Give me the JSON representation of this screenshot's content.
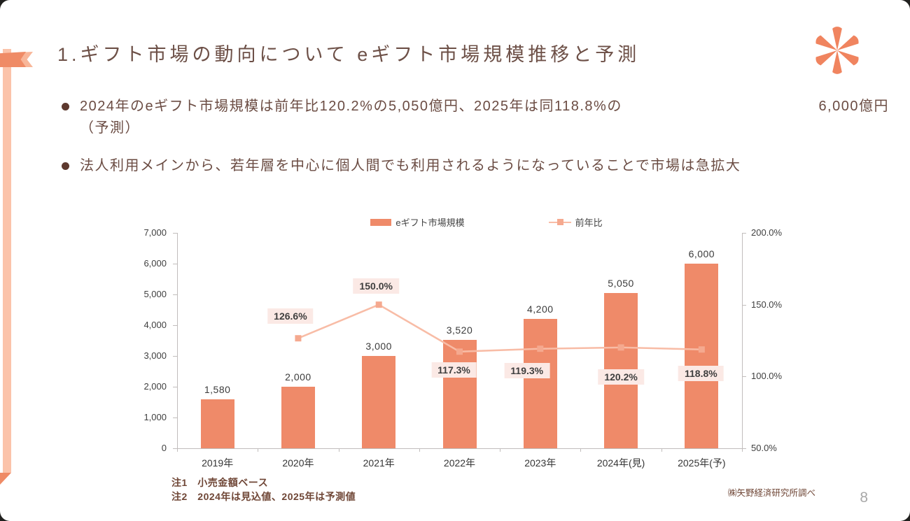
{
  "slide": {
    "title": "1.ギフト市場の動向について eギフト市場規模推移と予測",
    "bullets": [
      {
        "text": "2024年のeギフト市場規模は前年比120.2%の5,050億円、2025年は同118.8%の",
        "right_text": "6,000億円",
        "line2": "（予測）"
      },
      {
        "text": "法人利用メインから、若年層を中心に個人間でも利用されるようになっていることで市場は急拡大"
      }
    ],
    "notes": [
      "注1　小売金額ベース",
      "注2　2024年は見込値、2025年は予測値"
    ],
    "source": "㈱矢野経済研究所調べ",
    "page_number": "8"
  },
  "colors": {
    "accent": "#ef8a69",
    "accent_light": "#f8bca6",
    "marker": "#f5a98f",
    "ribbon_light": "#fbc3aa",
    "flag_dark": "#ef8b66",
    "asterisk": "#f0845f",
    "label_bg": "#fbe9e5",
    "text_brown": "#6b4c43",
    "note_brown": "#6f4636"
  },
  "chart_data": {
    "type": "bar",
    "subtype": "bar+line combo",
    "categories": [
      "2019年",
      "2020年",
      "2021年",
      "2022年",
      "2023年",
      "2024年(見)",
      "2025年(予)"
    ],
    "series": [
      {
        "name": "eギフト市場規模",
        "type": "bar",
        "axis": "left",
        "values": [
          1580,
          2000,
          3000,
          3520,
          4200,
          5050,
          6000
        ],
        "labels": [
          "1,580",
          "2,000",
          "3,000",
          "3,520",
          "4,200",
          "5,050",
          "6,000"
        ]
      },
      {
        "name": "前年比",
        "type": "line",
        "axis": "right",
        "values": [
          null,
          126.6,
          150.0,
          117.3,
          119.3,
          120.2,
          118.8
        ],
        "labels": [
          null,
          "126.6%",
          "150.0%",
          "117.3%",
          "119.3%",
          "120.2%",
          "118.8%"
        ]
      }
    ],
    "left_axis": {
      "min": 0,
      "max": 7000,
      "step": 1000,
      "tick_labels": [
        "0",
        "1,000",
        "2,000",
        "3,000",
        "4,000",
        "5,000",
        "6,000",
        "7,000"
      ]
    },
    "right_axis": {
      "min": 50,
      "max": 200,
      "step": 50,
      "tick_labels": [
        "50.0%",
        "100.0%",
        "150.0%",
        "200.0%"
      ]
    },
    "legend_position": "top",
    "grid": false
  }
}
